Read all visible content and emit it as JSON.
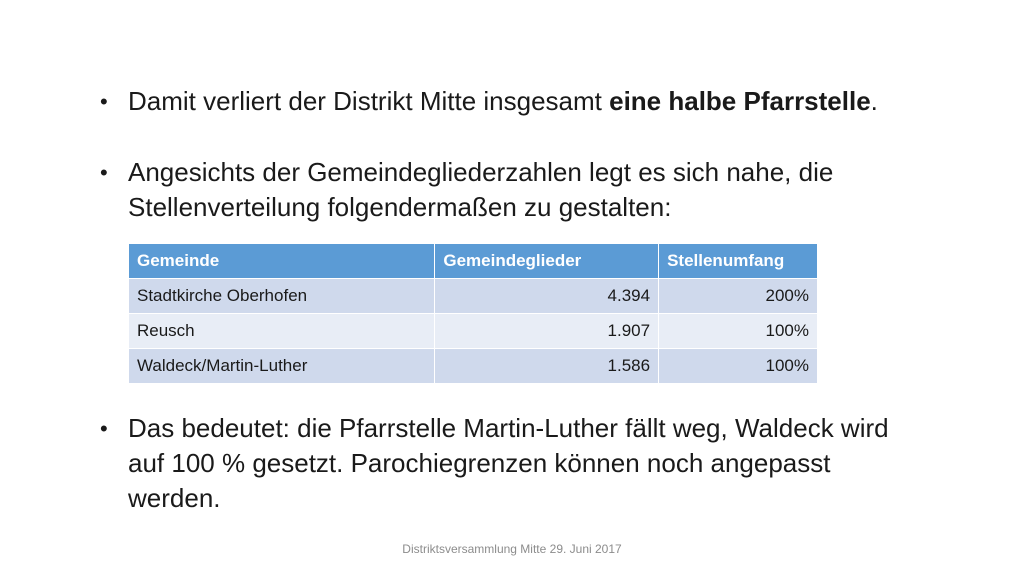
{
  "bullets": [
    {
      "text_before": "Damit verliert der Distrikt Mitte insgesamt ",
      "text_bold": "eine halbe Pfarrstelle",
      "text_after": "."
    },
    {
      "text": "Angesichts der Gemeindegliederzahlen legt es sich nahe, die Stellenverteilung folgendermaßen zu gestalten:"
    },
    {
      "text": "Das bedeutet: die Pfarrstelle Martin-Luther fällt weg, Waldeck wird auf 100 % gesetzt. Parochiegrenzen können noch angepasst werden."
    }
  ],
  "table": {
    "headers": [
      "Gemeinde",
      "Gemeindeglieder",
      "Stellenumfang"
    ],
    "rows": [
      [
        "Stadtkirche Oberhofen",
        "4.394",
        "200%"
      ],
      [
        "Reusch",
        "1.907",
        "100%"
      ],
      [
        "Waldeck/Martin-Luther",
        "1.586",
        "100%"
      ]
    ]
  },
  "footer": "Distriktsversammlung Mitte 29. Juni 2017",
  "colors": {
    "header_bg": "#5b9bd5",
    "row_bg": "#cfd9ec",
    "row_alt_bg": "#e8edf6"
  }
}
